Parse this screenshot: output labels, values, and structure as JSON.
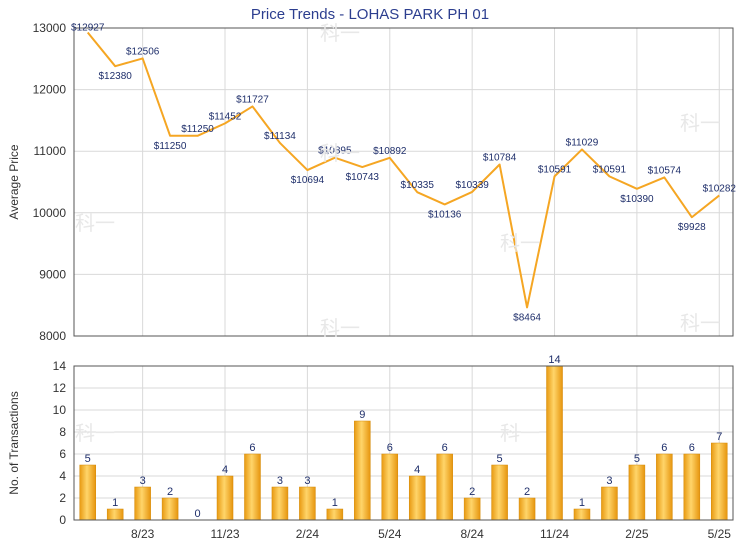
{
  "title": "Price Trends - LOHAS PARK PH 01",
  "watermark": "科一",
  "colors": {
    "line": "#f5a623",
    "bar": "#f3b632",
    "grid": "#d9d9d9",
    "text": "#1f2f6b"
  },
  "chart_data": [
    {
      "type": "line",
      "title": "Price Trends - LOHAS PARK PH 01",
      "ylabel": "Average Price",
      "ylim": [
        8000,
        13000
      ],
      "yticks": [
        "8000",
        "9000",
        "10000",
        "11000",
        "12000",
        "13000"
      ],
      "x_tick_labels": [
        {
          "label": "8/23",
          "month_index": 2
        },
        {
          "label": "11/23",
          "month_index": 5
        },
        {
          "label": "2/24",
          "month_index": 8
        },
        {
          "label": "5/24",
          "month_index": 11
        },
        {
          "label": "8/24",
          "month_index": 14
        },
        {
          "label": "11/24",
          "month_index": 17
        },
        {
          "label": "2/25",
          "month_index": 20
        },
        {
          "label": "5/25",
          "month_index": 23
        }
      ],
      "points": [
        {
          "month_index": 0,
          "value": 12927,
          "label": "$12927"
        },
        {
          "month_index": 1,
          "value": 12380,
          "label": "$12380"
        },
        {
          "month_index": 2,
          "value": 12506,
          "label": "$12506"
        },
        {
          "month_index": 3,
          "value": 11250,
          "label": "$11250"
        },
        {
          "month_index": 4,
          "value": 11250,
          "label": "$11250"
        },
        {
          "month_index": 5,
          "value": 11452,
          "label": "$11452"
        },
        {
          "month_index": 6,
          "value": 11727,
          "label": "$11727"
        },
        {
          "month_index": 7,
          "value": 11134,
          "label": "$11134"
        },
        {
          "month_index": 8,
          "value": 10694,
          "label": "$10694"
        },
        {
          "month_index": 9,
          "value": 10895,
          "label": "$10895"
        },
        {
          "month_index": 10,
          "value": 10743,
          "label": "$10743"
        },
        {
          "month_index": 11,
          "value": 10892,
          "label": "$10892"
        },
        {
          "month_index": 12,
          "value": 10335,
          "label": "$10335"
        },
        {
          "month_index": 13,
          "value": 10136,
          "label": "$10136"
        },
        {
          "month_index": 14,
          "value": 10339,
          "label": "$10339"
        },
        {
          "month_index": 15,
          "value": 10784,
          "label": "$10784"
        },
        {
          "month_index": 16,
          "value": 8464,
          "label": "$8464"
        },
        {
          "month_index": 17,
          "value": 10591,
          "label": "$10591"
        },
        {
          "month_index": 18,
          "value": 11029,
          "label": "$11029"
        },
        {
          "month_index": 19,
          "value": 10591,
          "label": "$10591"
        },
        {
          "month_index": 20,
          "value": 10390,
          "label": "$10390"
        },
        {
          "month_index": 21,
          "value": 10574,
          "label": "$10574"
        },
        {
          "month_index": 22,
          "value": 9928,
          "label": "$9928"
        },
        {
          "month_index": 23,
          "value": 10282,
          "label": "$10282"
        }
      ]
    },
    {
      "type": "bar",
      "ylabel": "No. of Transactions",
      "ylim": [
        0,
        14
      ],
      "yticks": [
        "0",
        "2",
        "4",
        "6",
        "8",
        "10",
        "12",
        "14"
      ],
      "values": [
        5,
        1,
        3,
        2,
        0,
        4,
        6,
        3,
        3,
        1,
        9,
        6,
        4,
        6,
        2,
        5,
        2,
        14,
        1,
        3,
        5,
        6,
        6,
        7
      ],
      "x_tick_labels": [
        "8/23",
        "11/23",
        "2/24",
        "5/24",
        "8/24",
        "11/24",
        "2/25",
        "5/25"
      ]
    }
  ]
}
